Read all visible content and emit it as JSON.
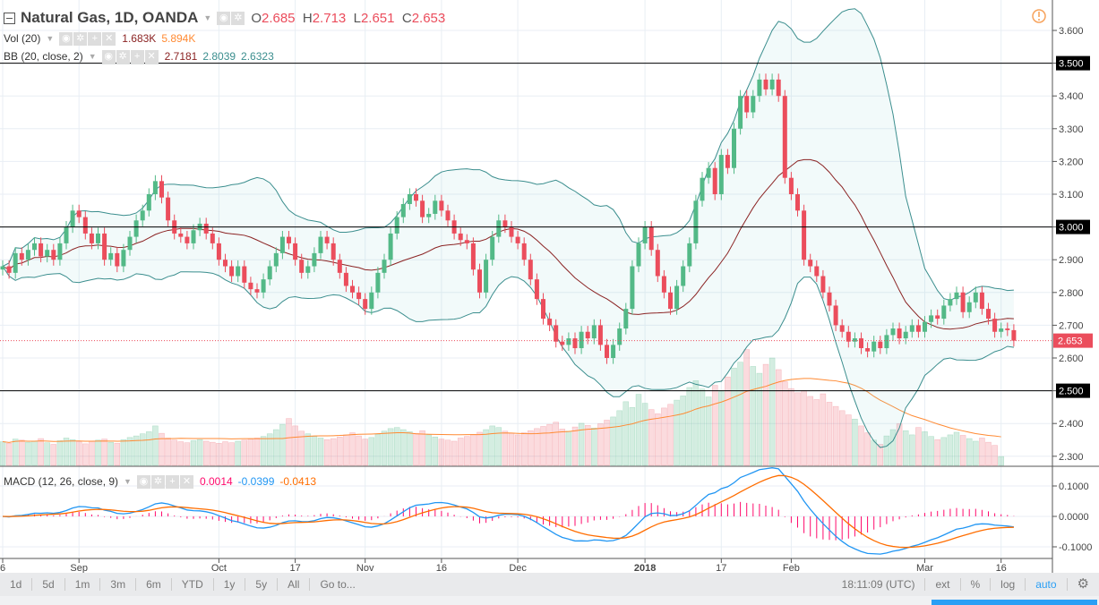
{
  "header": {
    "symbol": "Natural Gas, 1D, OANDA",
    "o_label": "O",
    "o": "2.685",
    "h_label": "H",
    "h": "2.713",
    "l_label": "L",
    "l": "2.651",
    "c_label": "C",
    "c": "2.653"
  },
  "vol_legend": {
    "name": "Vol (20)",
    "value": "1.683K",
    "ma": "5.894K"
  },
  "bb_legend": {
    "name": "BB (20, close, 2)",
    "basis": "2.7181",
    "upper": "2.8039",
    "lower": "2.6323"
  },
  "macd_legend": {
    "name": "MACD (12, 26, close, 9)",
    "hist": "0.0014",
    "macd": "-0.0399",
    "signal": "-0.0413"
  },
  "toolbar": {
    "ranges": [
      "1d",
      "5d",
      "1m",
      "3m",
      "6m",
      "YTD",
      "1y",
      "5y",
      "All",
      "Go to..."
    ],
    "time": "18:11:09 (UTC)",
    "ext": "ext",
    "pct": "%",
    "log": "log",
    "auto": "auto"
  },
  "colors": {
    "up": "#53b987",
    "down": "#eb4d5c",
    "bb_band": "#3b8e8e",
    "bb_basis": "#8b2323",
    "vol_ma": "#ff8a33",
    "macd": "#2196f3",
    "signal": "#ff6d00",
    "hist": "#ff0a6c",
    "accent": "#2196f3"
  },
  "chart_data": {
    "type": "candlestick",
    "price_axis": {
      "ticks": [
        "3.600",
        "3.500",
        "3.400",
        "3.300",
        "3.200",
        "3.100",
        "3.000",
        "2.900",
        "2.800",
        "2.700",
        "2.600",
        "2.500",
        "2.400",
        "2.300"
      ],
      "range": [
        2.28,
        3.69
      ]
    },
    "horizontal_lines": [
      "3.500",
      "3.000",
      "2.500"
    ],
    "last_price": "2.653",
    "macd_axis": {
      "ticks": [
        "0.1000",
        "0.0000",
        "-0.1000"
      ]
    },
    "date_ticks": [
      {
        "label": "6",
        "bar": 0
      },
      {
        "label": "Sep",
        "bar": 12
      },
      {
        "label": "Oct",
        "bar": 34
      },
      {
        "label": "17",
        "bar": 46
      },
      {
        "label": "Nov",
        "bar": 57
      },
      {
        "label": "16",
        "bar": 69
      },
      {
        "label": "Dec",
        "bar": 81
      },
      {
        "label": "2018",
        "bar": 101
      },
      {
        "label": "17",
        "bar": 113
      },
      {
        "label": "Feb",
        "bar": 124
      },
      {
        "label": "Mar",
        "bar": 145
      },
      {
        "label": "16",
        "bar": 157
      }
    ],
    "closes": [
      2.88,
      2.86,
      2.92,
      2.9,
      2.93,
      2.95,
      2.91,
      2.93,
      2.9,
      2.95,
      3.0,
      3.05,
      3.03,
      2.98,
      2.95,
      2.98,
      2.9,
      2.92,
      2.88,
      2.93,
      2.97,
      3.02,
      3.05,
      3.1,
      3.14,
      3.09,
      3.02,
      2.98,
      2.97,
      2.95,
      2.99,
      3.01,
      2.98,
      2.95,
      2.9,
      2.88,
      2.85,
      2.88,
      2.83,
      2.81,
      2.8,
      2.84,
      2.88,
      2.92,
      2.97,
      2.95,
      2.9,
      2.86,
      2.88,
      2.92,
      2.97,
      2.95,
      2.9,
      2.86,
      2.82,
      2.8,
      2.78,
      2.75,
      2.8,
      2.86,
      2.9,
      2.98,
      3.03,
      3.07,
      3.1,
      3.08,
      3.03,
      3.04,
      3.08,
      3.05,
      3.02,
      2.98,
      2.96,
      2.95,
      2.87,
      2.8,
      2.9,
      2.97,
      3.02,
      3.0,
      2.97,
      2.95,
      2.9,
      2.84,
      2.78,
      2.72,
      2.7,
      2.65,
      2.64,
      2.66,
      2.63,
      2.68,
      2.66,
      2.7,
      2.64,
      2.6,
      2.64,
      2.69,
      2.75,
      2.88,
      2.95,
      3.0,
      2.93,
      2.85,
      2.8,
      2.75,
      2.82,
      2.88,
      2.95,
      3.08,
      3.15,
      3.18,
      3.1,
      3.22,
      3.18,
      3.3,
      3.4,
      3.35,
      3.4,
      3.45,
      3.42,
      3.45,
      3.4,
      3.15,
      3.1,
      3.05,
      2.9,
      2.88,
      2.85,
      2.8,
      2.76,
      2.7,
      2.68,
      2.65,
      2.66,
      2.63,
      2.62,
      2.65,
      2.63,
      2.67,
      2.69,
      2.66,
      2.68,
      2.7,
      2.68,
      2.71,
      2.73,
      2.72,
      2.76,
      2.78,
      2.8,
      2.74,
      2.77,
      2.8,
      2.75,
      2.72,
      2.68,
      2.69,
      2.685,
      2.653
    ],
    "volumes_k": [
      4.5,
      4.2,
      5.0,
      4.8,
      4.4,
      4.6,
      5.1,
      4.3,
      4.0,
      4.7,
      5.2,
      4.9,
      4.5,
      4.1,
      4.6,
      4.8,
      5.0,
      4.4,
      4.2,
      4.9,
      5.3,
      5.6,
      6.0,
      6.4,
      7.5,
      6.1,
      5.2,
      4.8,
      4.5,
      4.3,
      4.7,
      4.9,
      4.6,
      4.4,
      4.2,
      4.5,
      4.3,
      4.6,
      4.8,
      5.0,
      5.2,
      5.5,
      6.0,
      6.8,
      7.8,
      8.9,
      7.5,
      6.5,
      6.0,
      5.5,
      5.2,
      4.9,
      5.1,
      5.4,
      5.8,
      6.2,
      5.6,
      5.0,
      5.3,
      5.9,
      6.5,
      7.0,
      7.2,
      6.8,
      6.4,
      6.1,
      6.6,
      5.8,
      5.4,
      5.0,
      4.8,
      4.6,
      5.2,
      5.5,
      5.9,
      6.3,
      6.8,
      7.5,
      7.2,
      6.5,
      6.1,
      5.8,
      6.2,
      6.6,
      7.0,
      7.4,
      7.8,
      8.2,
      6.9,
      6.5,
      7.3,
      8.0,
      7.6,
      7.1,
      7.9,
      8.6,
      9.2,
      10.4,
      12.1,
      11.0,
      13.5,
      11.8,
      10.6,
      9.8,
      10.9,
      11.6,
      12.4,
      13.2,
      14.8,
      16.1,
      14.5,
      13.0,
      15.2,
      14.0,
      16.8,
      18.5,
      19.6,
      22.0,
      18.8,
      17.5,
      19.2,
      20.4,
      18.2,
      15.9,
      14.6,
      13.8,
      14.2,
      13.1,
      12.5,
      13.6,
      12.0,
      11.2,
      10.4,
      9.6,
      8.8,
      7.5,
      6.2,
      4.8,
      4.0,
      5.6,
      6.8,
      7.9,
      6.6,
      5.8,
      7.2,
      6.4,
      5.5,
      4.9,
      5.3,
      5.8,
      6.3,
      5.7,
      5.1,
      4.6,
      5.2,
      4.4,
      3.8,
      1.683
    ]
  }
}
